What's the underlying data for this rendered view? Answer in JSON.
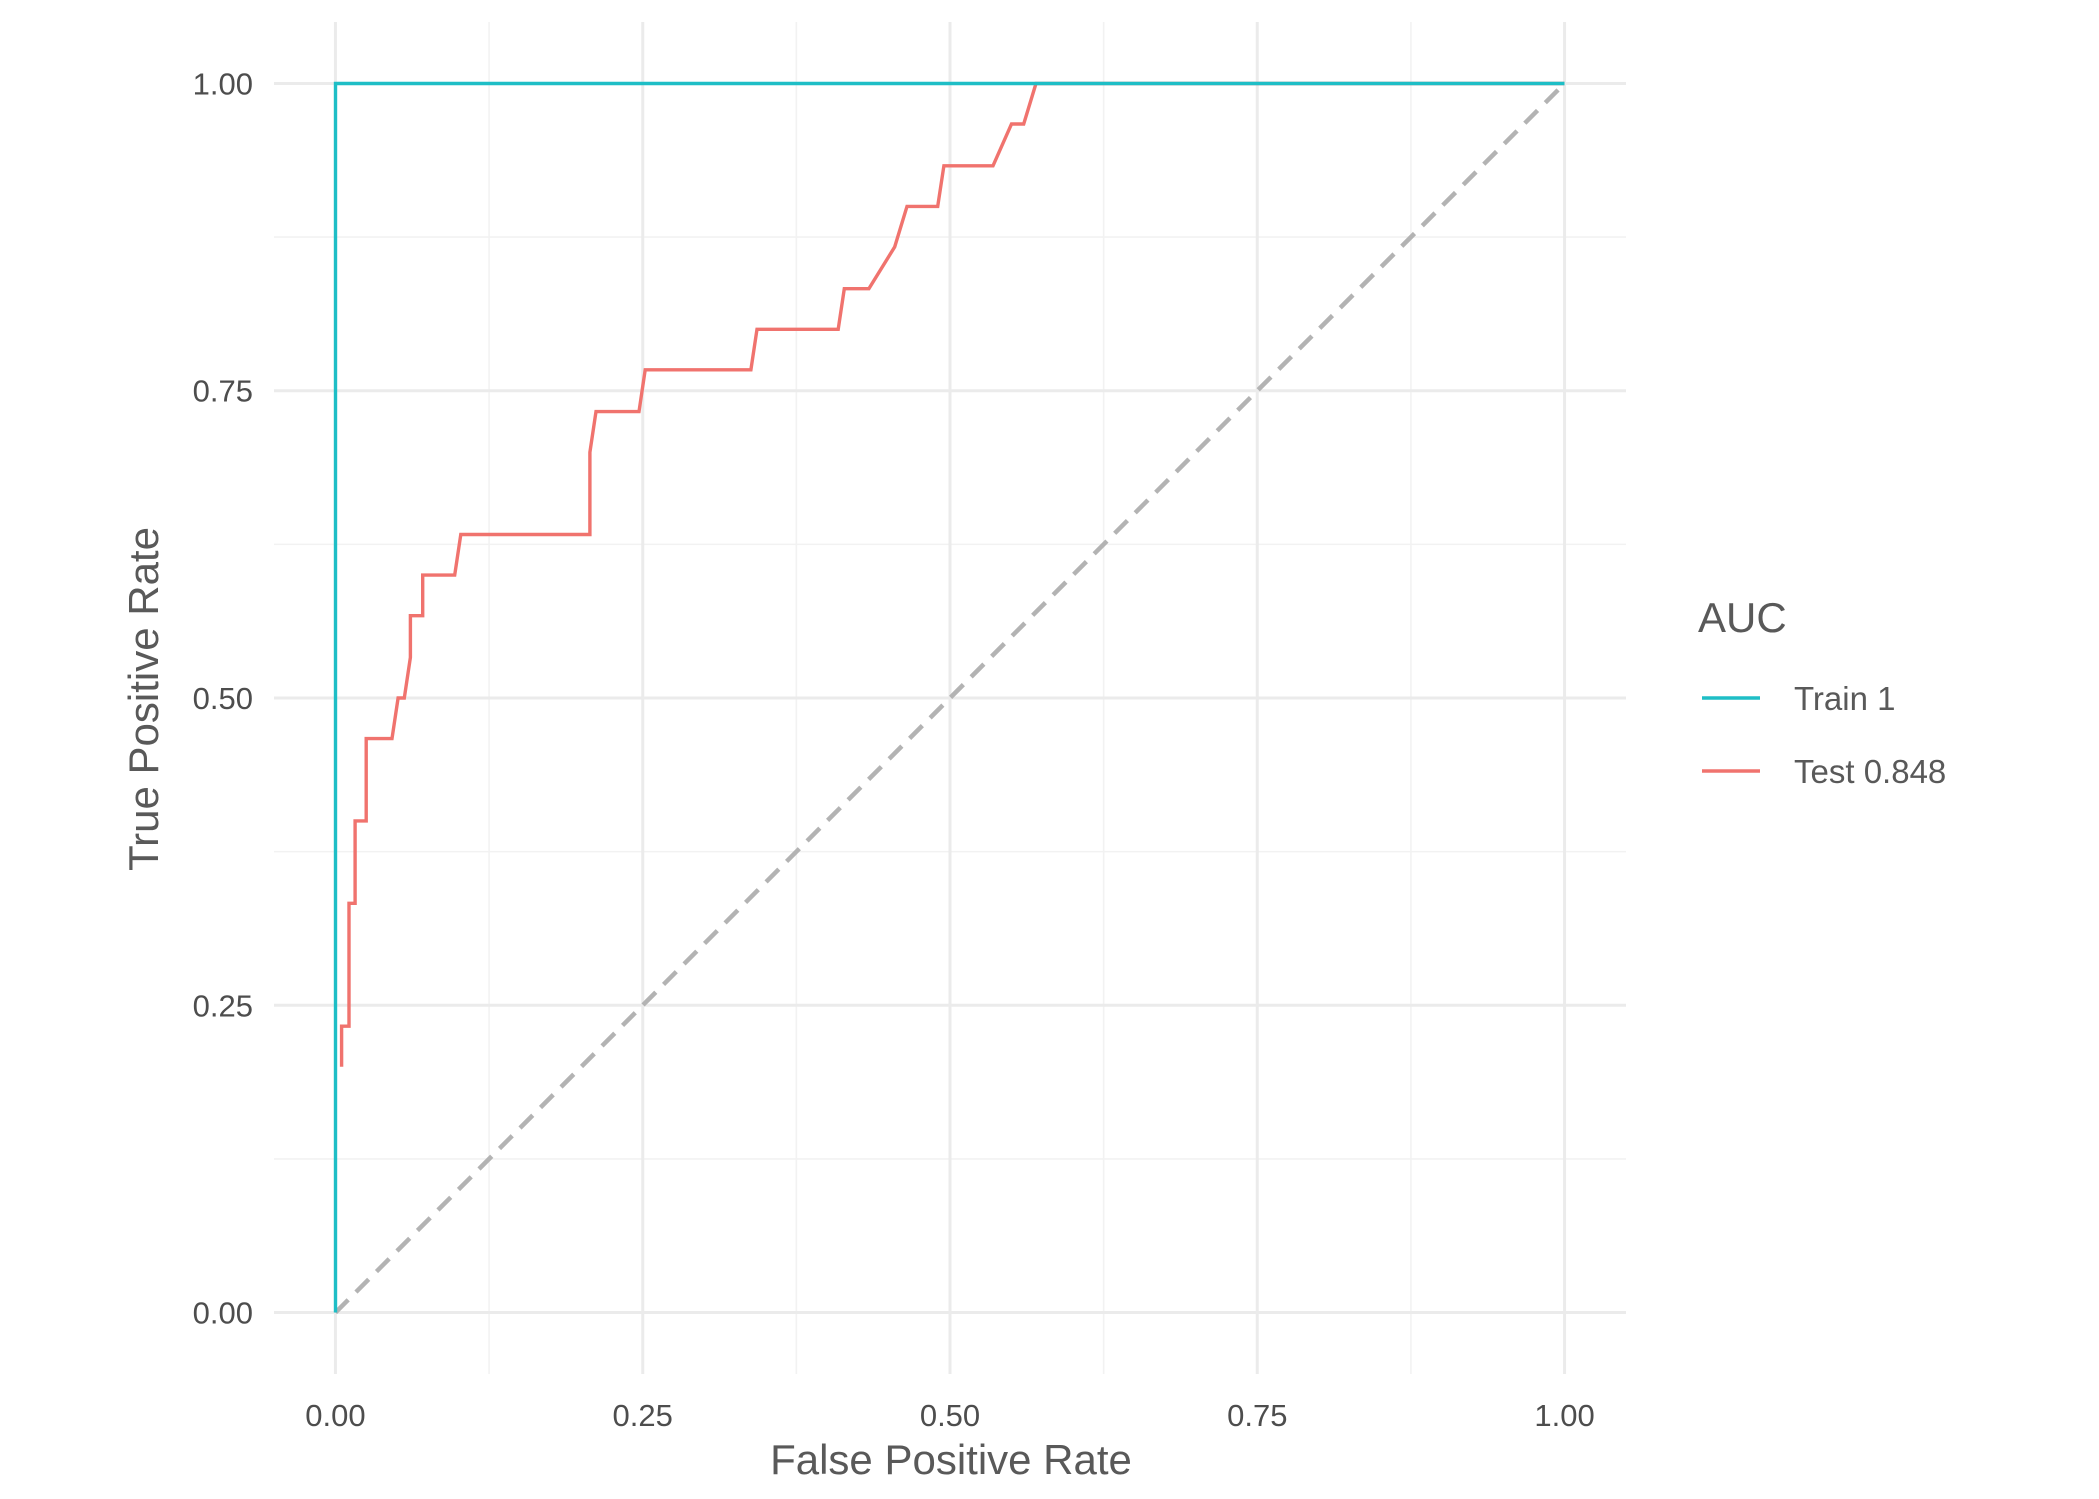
{
  "chart_data": {
    "type": "line",
    "xlabel": "False Positive Rate",
    "ylabel": "True Positive Rate",
    "xlim": [
      -0.05,
      1.05
    ],
    "ylim": [
      -0.05,
      1.05
    ],
    "x_ticks": [
      "0.00",
      "0.25",
      "0.50",
      "0.75",
      "1.00"
    ],
    "y_ticks": [
      "0.00",
      "0.25",
      "0.50",
      "0.75",
      "1.00"
    ],
    "grid": true,
    "legend": {
      "title": "AUC",
      "placement": "right"
    },
    "reference_line": {
      "x": [
        0,
        1
      ],
      "y": [
        0,
        1
      ],
      "style": "dashed",
      "color": "#b3b3b3"
    },
    "series": [
      {
        "name": "Train 1",
        "color": "#1ebec6",
        "points": [
          [
            0,
            0
          ],
          [
            0,
            1
          ],
          [
            1,
            1
          ]
        ]
      },
      {
        "name": "Test 0.848",
        "color": "#f0736e",
        "points": [
          [
            0.005,
            0.2
          ],
          [
            0.005,
            0.233
          ],
          [
            0.011,
            0.233
          ],
          [
            0.011,
            0.333
          ],
          [
            0.016,
            0.333
          ],
          [
            0.016,
            0.4
          ],
          [
            0.025,
            0.4
          ],
          [
            0.025,
            0.467
          ],
          [
            0.046,
            0.467
          ],
          [
            0.051,
            0.5
          ],
          [
            0.056,
            0.5
          ],
          [
            0.061,
            0.533
          ],
          [
            0.061,
            0.567
          ],
          [
            0.071,
            0.567
          ],
          [
            0.071,
            0.6
          ],
          [
            0.097,
            0.6
          ],
          [
            0.102,
            0.633
          ],
          [
            0.207,
            0.633
          ],
          [
            0.207,
            0.7
          ],
          [
            0.212,
            0.733
          ],
          [
            0.247,
            0.733
          ],
          [
            0.252,
            0.767
          ],
          [
            0.338,
            0.767
          ],
          [
            0.343,
            0.8
          ],
          [
            0.409,
            0.8
          ],
          [
            0.414,
            0.833
          ],
          [
            0.434,
            0.833
          ],
          [
            0.455,
            0.867
          ],
          [
            0.465,
            0.9
          ],
          [
            0.49,
            0.9
          ],
          [
            0.495,
            0.933
          ],
          [
            0.535,
            0.933
          ],
          [
            0.55,
            0.967
          ],
          [
            0.56,
            0.967
          ],
          [
            0.57,
            1.0
          ],
          [
            1.0,
            1.0
          ]
        ]
      }
    ]
  }
}
